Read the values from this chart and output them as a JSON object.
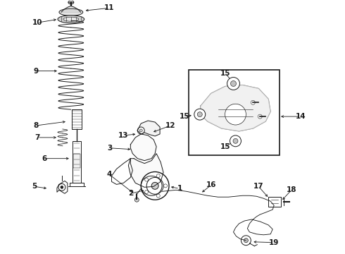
{
  "bg_color": "#ffffff",
  "line_color": "#1a1a1a",
  "fig_width": 4.9,
  "fig_height": 3.6,
  "dpi": 100,
  "label_fs": 7.5,
  "arrow_lw": 0.6,
  "comp_lw": 0.7
}
